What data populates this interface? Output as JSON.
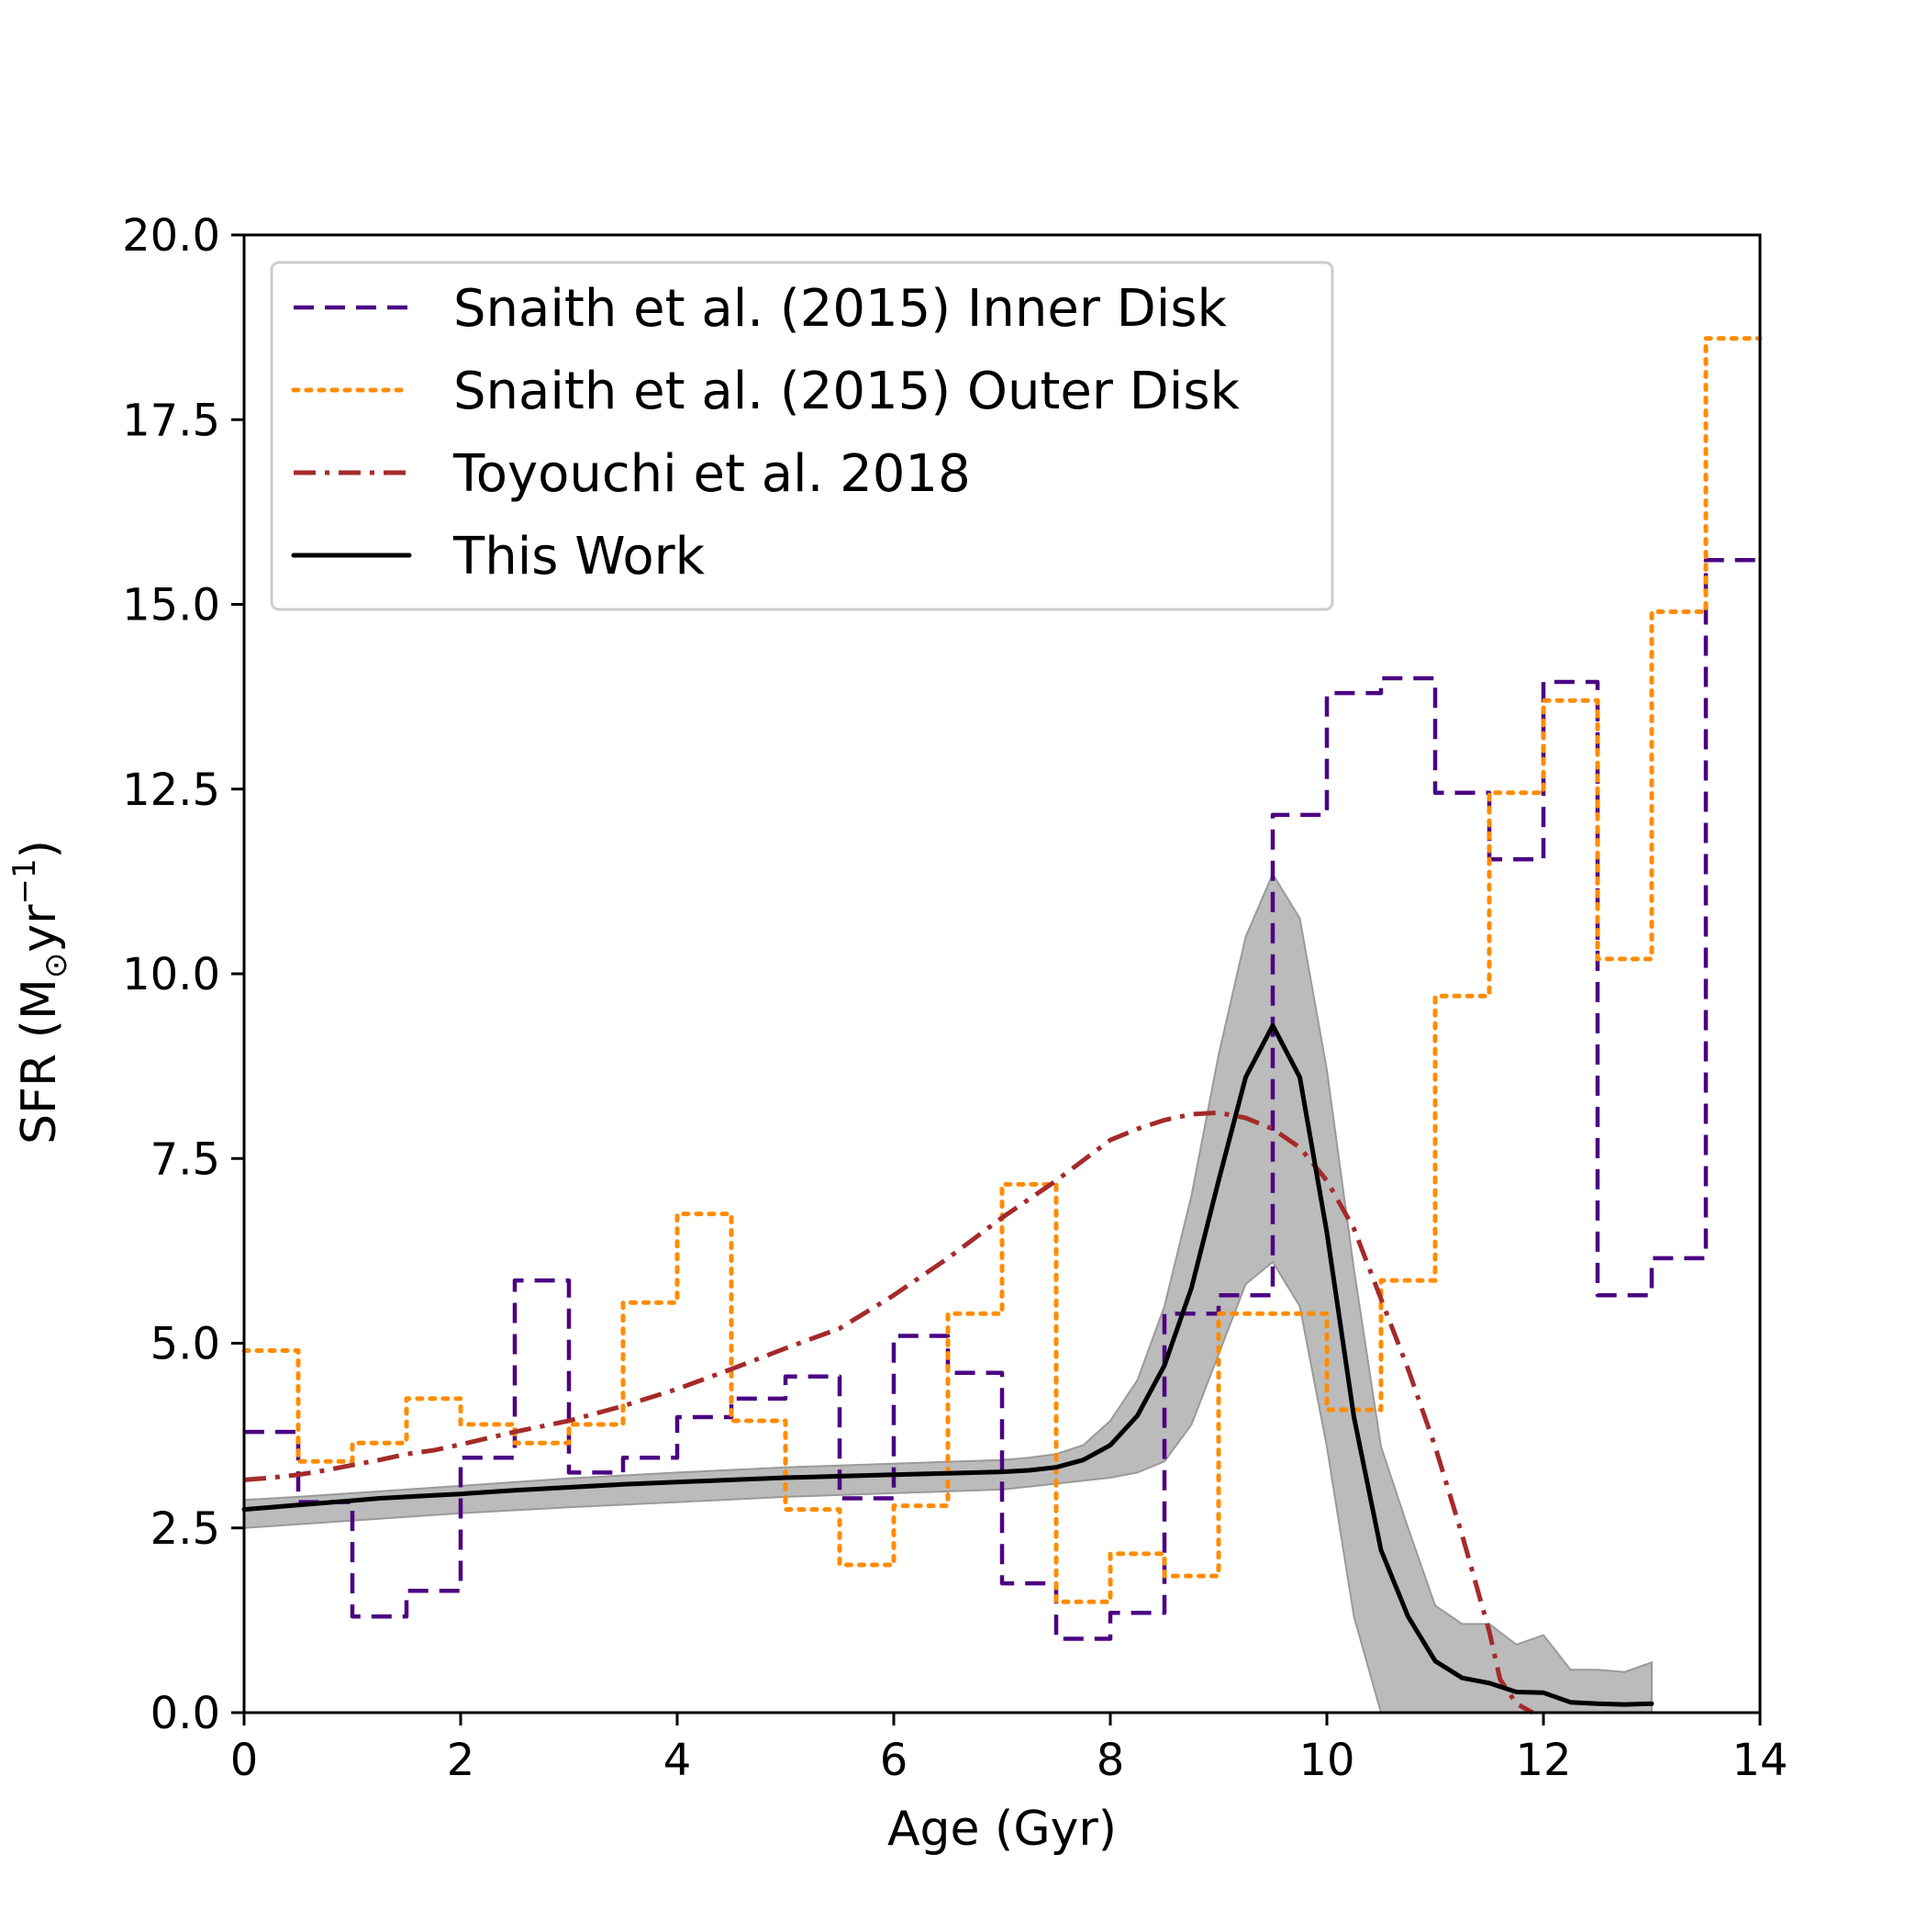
{
  "chart_data": {
    "type": "line",
    "title": "",
    "xlabel": "Age (Gyr)",
    "ylabel": "SFR (M",
    "ylabel_sub": "⊙",
    "ylabel_mid": "yr",
    "ylabel_sup": "−1",
    "ylabel_close": ")",
    "xlim": [
      0,
      14
    ],
    "ylim": [
      0,
      20
    ],
    "xticks": [
      0,
      2,
      4,
      6,
      8,
      10,
      12,
      14
    ],
    "xtick_labels": [
      "0",
      "2",
      "4",
      "6",
      "8",
      "10",
      "12",
      "14"
    ],
    "yticks": [
      0,
      2.5,
      5,
      7.5,
      10,
      12.5,
      15,
      17.5,
      20
    ],
    "ytick_labels": [
      "0.0",
      "2.5",
      "5.0",
      "7.5",
      "10.0",
      "12.5",
      "15.0",
      "17.5",
      "20.0"
    ],
    "grid": false,
    "legend_position": "upper-left",
    "series": [
      {
        "name": "Snaith et al. (2015) Inner Disk",
        "style": "dashed-step",
        "color": "#4b0082",
        "bin_edges": [
          0,
          0.5,
          1,
          1.5,
          2,
          2.5,
          3,
          3.5,
          4,
          4.5,
          5,
          5.5,
          6,
          6.5,
          7,
          7.5,
          8,
          8.5,
          9,
          9.5,
          10,
          10.5,
          11,
          11.5,
          12,
          12.5,
          13,
          13.5,
          14
        ],
        "values": [
          3.8,
          2.85,
          1.3,
          1.65,
          3.45,
          5.85,
          3.25,
          3.45,
          4.0,
          4.25,
          4.55,
          2.9,
          5.1,
          4.6,
          1.75,
          1.0,
          1.35,
          5.4,
          5.65,
          12.15,
          13.8,
          14.0,
          12.45,
          11.55,
          13.95,
          5.65,
          6.15,
          15.6
        ]
      },
      {
        "name": "Snaith et al. (2015) Outer Disk",
        "style": "dotted-step",
        "color": "#ff8c00",
        "bin_edges": [
          0,
          0.5,
          1,
          1.5,
          2,
          2.5,
          3,
          3.5,
          4,
          4.5,
          5,
          5.5,
          6,
          6.5,
          7,
          7.5,
          8,
          8.5,
          9,
          9.5,
          10,
          10.5,
          11,
          11.5,
          12,
          12.5,
          13,
          13.5,
          14
        ],
        "values": [
          4.9,
          3.4,
          3.65,
          4.25,
          3.9,
          3.65,
          3.9,
          5.55,
          6.75,
          3.95,
          2.75,
          2.0,
          2.8,
          5.4,
          7.15,
          1.5,
          2.15,
          1.85,
          5.4,
          5.4,
          4.1,
          5.85,
          9.7,
          12.45,
          13.7,
          10.2,
          14.9,
          18.6
        ]
      },
      {
        "name": "Toyouchi et al. 2018",
        "style": "dashdot",
        "color": "#a52a2a",
        "x": [
          0,
          0.25,
          0.5,
          0.75,
          1,
          1.25,
          1.5,
          1.75,
          2,
          2.5,
          3,
          3.5,
          4,
          4.5,
          5,
          5.5,
          6,
          6.5,
          7,
          7.5,
          8,
          8.25,
          8.5,
          8.75,
          9,
          9.25,
          9.5,
          9.75,
          10,
          10.25,
          10.5,
          10.75,
          11,
          11.25,
          11.5,
          11.6,
          11.75,
          11.9
        ],
        "y": [
          3.15,
          3.18,
          3.22,
          3.28,
          3.35,
          3.42,
          3.5,
          3.55,
          3.63,
          3.8,
          3.95,
          4.15,
          4.38,
          4.65,
          4.93,
          5.2,
          5.65,
          6.15,
          6.7,
          7.2,
          7.75,
          7.9,
          8.02,
          8.1,
          8.12,
          8.05,
          7.9,
          7.65,
          7.2,
          6.55,
          5.6,
          4.65,
          3.6,
          2.4,
          1.1,
          0.45,
          0.12,
          0.0
        ]
      },
      {
        "name": "This Work",
        "style": "solid",
        "color": "#000000",
        "x": [
          0,
          0.25,
          0.5,
          0.75,
          1,
          1.25,
          1.5,
          1.75,
          2,
          2.5,
          3,
          3.5,
          4,
          4.5,
          5,
          5.5,
          6,
          6.5,
          7,
          7.25,
          7.5,
          7.75,
          8,
          8.25,
          8.5,
          8.75,
          9,
          9.25,
          9.5,
          9.75,
          10,
          10.25,
          10.5,
          10.75,
          11,
          11.25,
          11.5,
          11.75,
          12,
          12.25,
          12.5,
          12.75,
          13
        ],
        "y": [
          2.75,
          2.78,
          2.81,
          2.84,
          2.87,
          2.9,
          2.92,
          2.94,
          2.96,
          3.01,
          3.05,
          3.09,
          3.12,
          3.15,
          3.18,
          3.2,
          3.22,
          3.24,
          3.26,
          3.28,
          3.32,
          3.42,
          3.62,
          4.02,
          4.7,
          5.75,
          7.2,
          8.6,
          9.3,
          8.6,
          6.5,
          4.0,
          2.2,
          1.3,
          0.7,
          0.47,
          0.4,
          0.28,
          0.27,
          0.14,
          0.12,
          0.11,
          0.12
        ]
      }
    ],
    "band": {
      "name": "This Work uncertainty",
      "color": "#bbbbbb",
      "edge_color": "#9a9a9a",
      "x": [
        0,
        0.5,
        1,
        2,
        3,
        4,
        5,
        6,
        7,
        7.25,
        7.5,
        7.75,
        8,
        8.25,
        8.5,
        8.75,
        9,
        9.25,
        9.5,
        9.75,
        10,
        10.25,
        10.5,
        10.75,
        11,
        11.25,
        11.5,
        11.75,
        12,
        12.25,
        12.5,
        12.75,
        13
      ],
      "upper": [
        2.88,
        2.92,
        2.97,
        3.07,
        3.17,
        3.25,
        3.32,
        3.37,
        3.42,
        3.45,
        3.5,
        3.62,
        3.95,
        4.5,
        5.5,
        7.0,
        8.9,
        10.5,
        11.35,
        10.75,
        8.7,
        6.0,
        3.6,
        2.5,
        1.45,
        1.2,
        1.2,
        0.92,
        1.05,
        0.58,
        0.58,
        0.55,
        0.68
      ],
      "lower": [
        2.5,
        2.55,
        2.6,
        2.7,
        2.78,
        2.85,
        2.92,
        2.97,
        3.02,
        3.06,
        3.1,
        3.14,
        3.18,
        3.25,
        3.4,
        3.9,
        4.85,
        5.8,
        6.1,
        5.5,
        3.6,
        1.3,
        0.0,
        0.0,
        0.0,
        0.0,
        0.0,
        0.0,
        0.0,
        0.0,
        0.0,
        0.0,
        0.0
      ]
    }
  }
}
